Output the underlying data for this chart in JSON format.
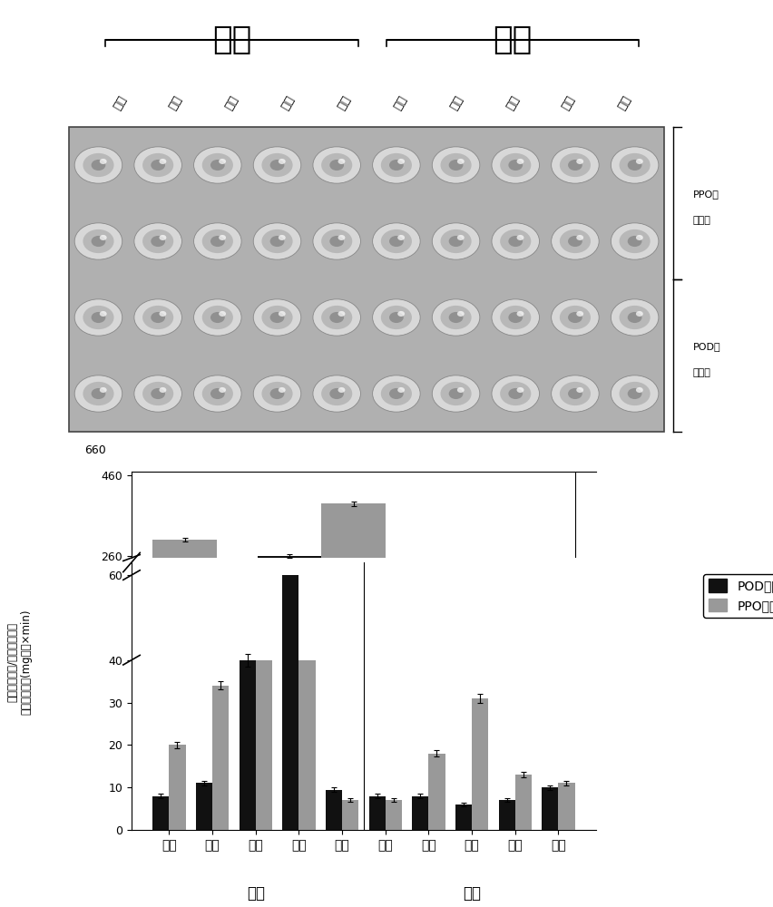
{
  "title_hongcha": "红茶",
  "title_lvcha": "绿茶",
  "col_labels_hongcha": [
    "鲜叶",
    "萎凋",
    "揉捻",
    "发酵",
    "干燥"
  ],
  "col_labels_lvcha": [
    "鲜叶",
    "推放",
    "杀青",
    "揉捻",
    "干燥"
  ],
  "pod_values": [
    8,
    11,
    40,
    260,
    9.5,
    8,
    8,
    6,
    7,
    10
  ],
  "pod_errors": [
    0.5,
    0.5,
    1.5,
    3,
    0.5,
    0.5,
    0.5,
    0.4,
    0.4,
    0.5
  ],
  "ppo_values": [
    20,
    34,
    40,
    40,
    7,
    7,
    18,
    31,
    13,
    11
  ],
  "ppo_errors": [
    0.8,
    1,
    1,
    1,
    0.4,
    0.4,
    0.8,
    1,
    0.6,
    0.5
  ],
  "ppo_upper_values": [
    null,
    null,
    300,
    390,
    null,
    null,
    null,
    null,
    null,
    null
  ],
  "ppo_upper_errors": [
    null,
    null,
    5,
    5,
    null,
    null,
    null,
    null,
    null,
    null
  ],
  "pod_color": "#111111",
  "ppo_color": "#999999",
  "legend_pod": "POD活性",
  "legend_ppo": "PPO活性",
  "xlabel_hongcha": "红茶",
  "xlabel_lvcha": "绿茶",
  "bar_width": 0.38,
  "lower_yticks": [
    0,
    10,
    20,
    30,
    40,
    60
  ],
  "upper_yticks": [
    260,
    460
  ],
  "upper_ylim": [
    255,
    470
  ],
  "lower_ylim": [
    0,
    63
  ],
  "ylabel_line1": "多酚氧化酶活/过氧化物酶活",
  "ylabel_line2": "吸光度差值／(mg蛋白×min)"
}
